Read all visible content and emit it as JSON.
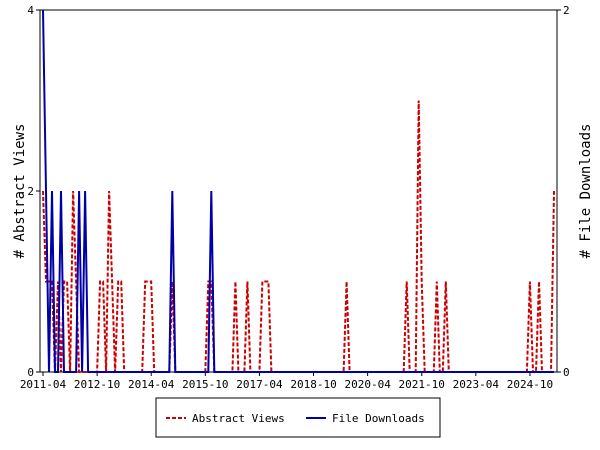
{
  "chart_data": {
    "type": "line",
    "x": [
      "2011-04",
      "2011-05",
      "2011-06",
      "2011-07",
      "2011-08",
      "2011-09",
      "2011-10",
      "2011-11",
      "2011-12",
      "2012-01",
      "2012-02",
      "2012-03",
      "2012-04",
      "2012-05",
      "2012-06",
      "2012-07",
      "2012-08",
      "2012-09",
      "2012-10",
      "2012-11",
      "2012-12",
      "2013-01",
      "2013-02",
      "2013-03",
      "2013-04",
      "2013-05",
      "2013-06",
      "2013-07",
      "2013-08",
      "2013-09",
      "2013-10",
      "2013-11",
      "2013-12",
      "2014-01",
      "2014-02",
      "2014-03",
      "2014-04",
      "2014-05",
      "2014-06",
      "2014-07",
      "2014-08",
      "2014-09",
      "2014-10",
      "2014-11",
      "2014-12",
      "2015-01",
      "2015-02",
      "2015-03",
      "2015-04",
      "2015-05",
      "2015-06",
      "2015-07",
      "2015-08",
      "2015-09",
      "2015-10",
      "2015-11",
      "2015-12",
      "2016-01",
      "2016-02",
      "2016-03",
      "2016-04",
      "2016-05",
      "2016-06",
      "2016-07",
      "2016-08",
      "2016-09",
      "2016-10",
      "2016-11",
      "2016-12",
      "2017-01",
      "2017-02",
      "2017-03",
      "2017-04",
      "2017-05",
      "2017-06",
      "2017-07",
      "2017-08",
      "2017-09",
      "2017-10",
      "2017-11",
      "2017-12",
      "2018-01",
      "2018-02",
      "2018-03",
      "2018-04",
      "2018-05",
      "2018-06",
      "2018-07",
      "2018-08",
      "2018-09",
      "2018-10",
      "2018-11",
      "2018-12",
      "2019-01",
      "2019-02",
      "2019-03",
      "2019-04",
      "2019-05",
      "2019-06",
      "2019-07",
      "2019-08",
      "2019-09",
      "2019-10",
      "2019-11",
      "2019-12",
      "2020-01",
      "2020-02",
      "2020-03",
      "2020-04",
      "2020-05",
      "2020-06",
      "2020-07",
      "2020-08",
      "2020-09",
      "2020-10",
      "2020-11",
      "2020-12",
      "2021-01",
      "2021-02",
      "2021-03",
      "2021-04",
      "2021-05",
      "2021-06",
      "2021-07",
      "2021-08",
      "2021-09",
      "2021-10",
      "2021-11",
      "2021-12",
      "2022-01",
      "2022-02",
      "2022-03",
      "2022-04",
      "2022-05",
      "2022-06",
      "2022-07",
      "2022-08",
      "2022-09",
      "2022-10",
      "2022-11",
      "2022-12",
      "2023-01",
      "2023-02",
      "2023-03",
      "2023-04",
      "2023-05",
      "2023-06",
      "2023-07",
      "2023-08",
      "2023-09",
      "2023-10",
      "2023-11",
      "2023-12",
      "2024-01",
      "2024-02",
      "2024-03",
      "2024-04",
      "2024-05",
      "2024-06",
      "2024-07",
      "2024-08",
      "2024-09",
      "2024-10",
      "2024-11",
      "2024-12",
      "2025-01",
      "2025-02",
      "2025-03",
      "2025-04",
      "2025-05",
      "2025-06"
    ],
    "series": [
      {
        "name": "Abstract Views",
        "color": "#cc0000",
        "dash": true,
        "values": [
          2,
          1,
          1,
          1,
          0,
          1,
          0,
          1,
          1,
          0,
          2,
          1,
          0,
          0,
          0,
          0,
          0,
          0,
          0,
          1,
          1,
          0,
          2,
          1,
          0,
          1,
          1,
          0,
          0,
          0,
          0,
          0,
          0,
          0,
          1,
          1,
          1,
          0,
          0,
          0,
          0,
          0,
          0,
          1,
          0,
          0,
          0,
          0,
          0,
          0,
          0,
          0,
          0,
          0,
          0,
          1,
          1,
          0,
          0,
          0,
          0,
          0,
          0,
          0,
          1,
          0,
          0,
          0,
          1,
          0,
          0,
          0,
          0,
          1,
          1,
          1,
          0,
          0,
          0,
          0,
          0,
          0,
          0,
          0,
          0,
          0,
          0,
          0,
          0,
          0,
          0,
          0,
          0,
          0,
          0,
          0,
          0,
          0,
          0,
          0,
          0,
          1,
          0,
          0,
          0,
          0,
          0,
          0,
          0,
          0,
          0,
          0,
          0,
          0,
          0,
          0,
          0,
          0,
          0,
          0,
          0,
          1,
          0,
          0,
          0,
          3,
          1,
          0,
          0,
          0,
          0,
          1,
          0,
          0,
          1,
          0,
          0,
          0,
          0,
          0,
          0,
          0,
          0,
          0,
          0,
          0,
          0,
          0,
          0,
          0,
          0,
          0,
          0,
          0,
          0,
          0,
          0,
          0,
          0,
          0,
          0,
          0,
          1,
          0,
          0,
          1,
          0,
          0,
          0,
          0,
          2
        ]
      },
      {
        "name": "File Downloads",
        "color": "#0000aa",
        "axis": "y2",
        "values": [
          2,
          1,
          0,
          1,
          0,
          0,
          1,
          0,
          0,
          0,
          0,
          0,
          1,
          0,
          1,
          0,
          0,
          0,
          0,
          0,
          0,
          0,
          0,
          0,
          0,
          0,
          0,
          0,
          0,
          0,
          0,
          0,
          0,
          0,
          0,
          0,
          0,
          0,
          0,
          0,
          0,
          0,
          0,
          1,
          0,
          0,
          0,
          0,
          0,
          0,
          0,
          0,
          0,
          0,
          0,
          0,
          1,
          0,
          0,
          0,
          0,
          0,
          0,
          0,
          0,
          0,
          0,
          0,
          0,
          0,
          0,
          0,
          0,
          0,
          0,
          0,
          0,
          0,
          0,
          0,
          0,
          0,
          0,
          0,
          0,
          0,
          0,
          0,
          0,
          0,
          0,
          0,
          0,
          0,
          0,
          0,
          0,
          0,
          0,
          0,
          0,
          0,
          0,
          0,
          0,
          0,
          0,
          0,
          0,
          0,
          0,
          0,
          0,
          0,
          0,
          0,
          0,
          0,
          0,
          0,
          0,
          0,
          0,
          0,
          0,
          0,
          0,
          0,
          0,
          0,
          0,
          0,
          0,
          0,
          0,
          0,
          0,
          0,
          0,
          0,
          0,
          0,
          0,
          0,
          0,
          0,
          0,
          0,
          0,
          0,
          0,
          0,
          0,
          0,
          0,
          0,
          0,
          0,
          0,
          0,
          0,
          0,
          0,
          0,
          0,
          0,
          0,
          0,
          0,
          0,
          0
        ]
      }
    ],
    "xlim": [
      "2011-03",
      "2025-07"
    ],
    "xticks": [
      "2011-04",
      "2012-10",
      "2014-04",
      "2015-10",
      "2017-04",
      "2018-10",
      "2020-04",
      "2021-10",
      "2023-04",
      "2024-10"
    ],
    "ylabel": "# Abstract Views",
    "ylim": [
      0,
      4
    ],
    "yticks": [
      0,
      2,
      4
    ],
    "y2label": "# File Downloads",
    "y2lim": [
      0,
      2
    ],
    "y2ticks": [
      0,
      2
    ],
    "grid": false,
    "legend": "bottom"
  }
}
